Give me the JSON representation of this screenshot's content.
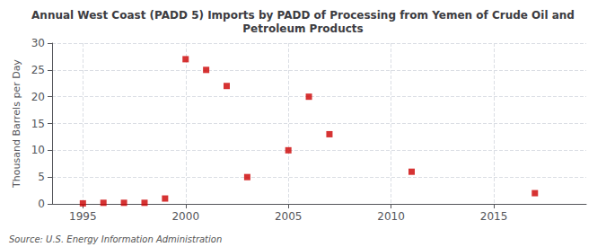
{
  "chart_data": {
    "type": "scatter",
    "title": "Annual West Coast (PADD 5) Imports by PADD of Processing from Yemen of Crude Oil and\nPetroleum Products",
    "ylabel": "Thousand Barrels per Day",
    "annotation": "Source: U.S. Energy Information Administration",
    "x": [
      1995,
      1996,
      1997,
      1998,
      1999,
      2000,
      2001,
      2002,
      2003,
      2005,
      2006,
      2007,
      2011,
      2017
    ],
    "values": [
      0.1,
      0.2,
      0.2,
      0.2,
      1.0,
      27.0,
      25.0,
      22.0,
      5.0,
      10.0,
      20.0,
      13.0,
      6.0,
      2.0
    ],
    "color": "#cc0000",
    "marker": "square",
    "xlim": [
      1993.5,
      2019.5
    ],
    "xticks": [
      1995,
      2000,
      2005,
      2010,
      2015
    ],
    "ylim": [
      0,
      30
    ],
    "yticks": [
      0,
      5,
      10,
      15,
      20,
      25,
      30
    ],
    "grid": true
  }
}
